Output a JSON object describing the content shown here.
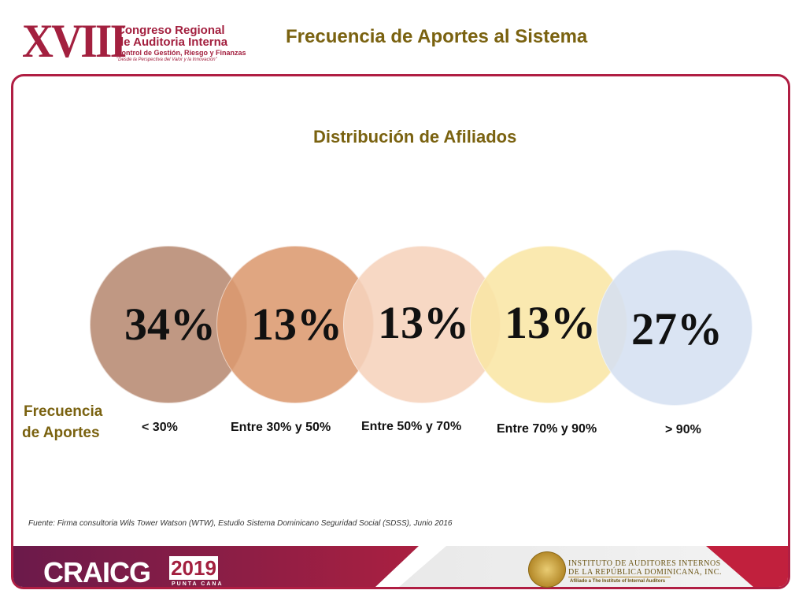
{
  "header": {
    "logo": {
      "roman": "XVIII",
      "line1": "Congreso Regional",
      "line2": "de Auditoria Interna",
      "line3": "Control de Gestión, Riesgo y Finanzas",
      "line4": "\"Desde la Perspectiva del Valor y la Innovación\""
    },
    "title": "Frecuencia de Aportes al Sistema"
  },
  "diagram": {
    "title": "Distribución de Afiliados",
    "row_label_line1": "Frecuencia",
    "row_label_line2": "de Aportes",
    "items": [
      {
        "percent": "34%",
        "category": "< 30%",
        "color": "#b88a72"
      },
      {
        "percent": "13%",
        "category": "Entre 30% y 50%",
        "color": "#dc9a70"
      },
      {
        "percent": "13%",
        "category": "Entre 50% y 70%",
        "color": "#f6d3bd"
      },
      {
        "percent": "13%",
        "category": "Entre 70% y 90%",
        "color": "#fae6a6"
      },
      {
        "percent": "27%",
        "category": "> 90%",
        "color": "#d6e1f2"
      }
    ]
  },
  "source_note": "Fuente: Firma consultoria Wils Tower Watson (WTW), Estudio Sistema Dominicano Seguridad Social (SDSS), Junio 2016",
  "footer": {
    "brand": "CRAICG",
    "year": "2019",
    "location": "PUNTA CANA",
    "institute_line1": "INSTITUTO DE AUDITORES INTERNOS",
    "institute_line2": "DE LA REPÚBLICA DOMINICANA, INC.",
    "institute_line3": "Afiliado a The Institute of Internal Auditors"
  },
  "colors": {
    "accent": "#b01e43",
    "title_gold": "#7a6210"
  }
}
